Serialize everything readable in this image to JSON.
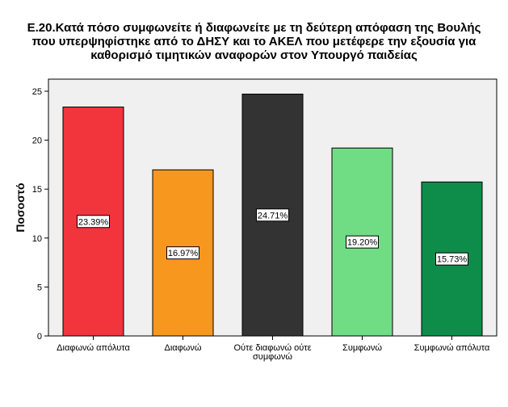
{
  "chart_data": {
    "type": "bar",
    "title_lines": [
      "E.20.Κατά πόσο συμφωνείτε ή διαφωνείτε με τη δεύτερη απόφαση της Βουλής",
      "που υπερψηφίστηκε από το ΔΗΣΥ και το ΑΚΕΛ που μετέφερε την εξουσία για",
      "καθορισμό τιμητικών αναφορών στον Υπουργό παιδείας"
    ],
    "ylabel": "Ποσοστό",
    "xlabel": "",
    "ylim": [
      0,
      25
    ],
    "yticks": [
      0,
      5,
      10,
      15,
      20,
      25
    ],
    "grid": false,
    "categories": [
      [
        "Διαφωνώ απόλυτα"
      ],
      [
        "Διαφωνώ"
      ],
      [
        "Ούτε διαφωνώ ούτε",
        "συμφωνώ"
      ],
      [
        "Συμφωνώ"
      ],
      [
        "Συμφωνώ απόλυτα"
      ]
    ],
    "values": [
      23.39,
      16.97,
      24.71,
      19.2,
      15.73
    ],
    "data_labels": [
      "23.39%",
      "16.97%",
      "24.71%",
      "19.20%",
      "15.73%"
    ],
    "colors": [
      "#f2343d",
      "#f7971e",
      "#333333",
      "#70dd85",
      "#0e8c4a"
    ],
    "plot_background": "#f0f0f0"
  }
}
